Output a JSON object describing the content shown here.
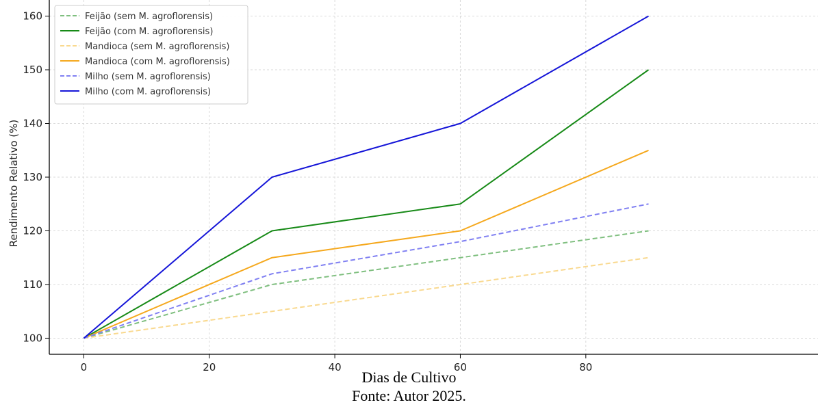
{
  "chart_data": {
    "type": "line",
    "title": "",
    "xlabel": "Dias de Cultivo",
    "ylabel": "Rendimento Relativo (%)",
    "xlim": [
      -5.5,
      117
    ],
    "ylim": [
      97,
      163
    ],
    "x_ticks": [
      0,
      20,
      40,
      60,
      80
    ],
    "y_ticks": [
      100,
      110,
      120,
      130,
      140,
      150,
      160
    ],
    "grid": true,
    "legend_position": "top-left",
    "x": [
      0,
      30,
      60,
      90
    ],
    "series": [
      {
        "name": "Feijão (sem M. agroflorensis)",
        "values": [
          100,
          110,
          115,
          120
        ],
        "color": "#7fbf7f",
        "dashed": true
      },
      {
        "name": "Feijão (com M. agroflorensis)",
        "values": [
          100,
          120,
          125,
          150
        ],
        "color": "#178a17",
        "dashed": false
      },
      {
        "name": "Mandioca (sem M. agroflorensis)",
        "values": [
          100,
          105,
          110,
          115
        ],
        "color": "#f9d98f",
        "dashed": true
      },
      {
        "name": "Mandioca (com M. agroflorensis)",
        "values": [
          100,
          115,
          120,
          135
        ],
        "color": "#f5a81d",
        "dashed": false
      },
      {
        "name": "Milho (sem M. agroflorensis)",
        "values": [
          100,
          112,
          118,
          125
        ],
        "color": "#8080f2",
        "dashed": true
      },
      {
        "name": "Milho (com M. agroflorensis)",
        "values": [
          100,
          130,
          140,
          160
        ],
        "color": "#1515d8",
        "dashed": false
      }
    ]
  },
  "caption": {
    "source": "Fonte: Autor 2025."
  }
}
